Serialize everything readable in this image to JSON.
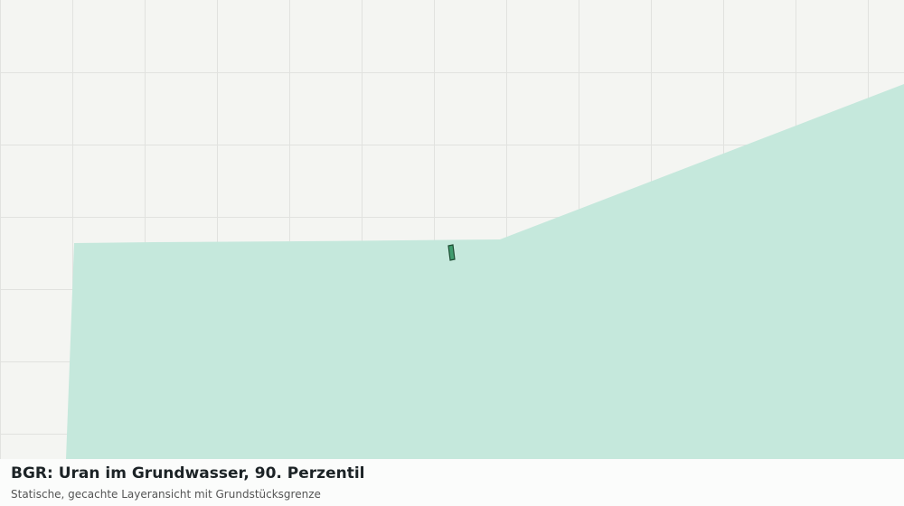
{
  "caption": {
    "title": "BGR: Uran im Grundwasser, 90. Perzentil",
    "subtitle": "Statische, gecachte Layeransicht mit Grundstücksgrenze"
  }
}
